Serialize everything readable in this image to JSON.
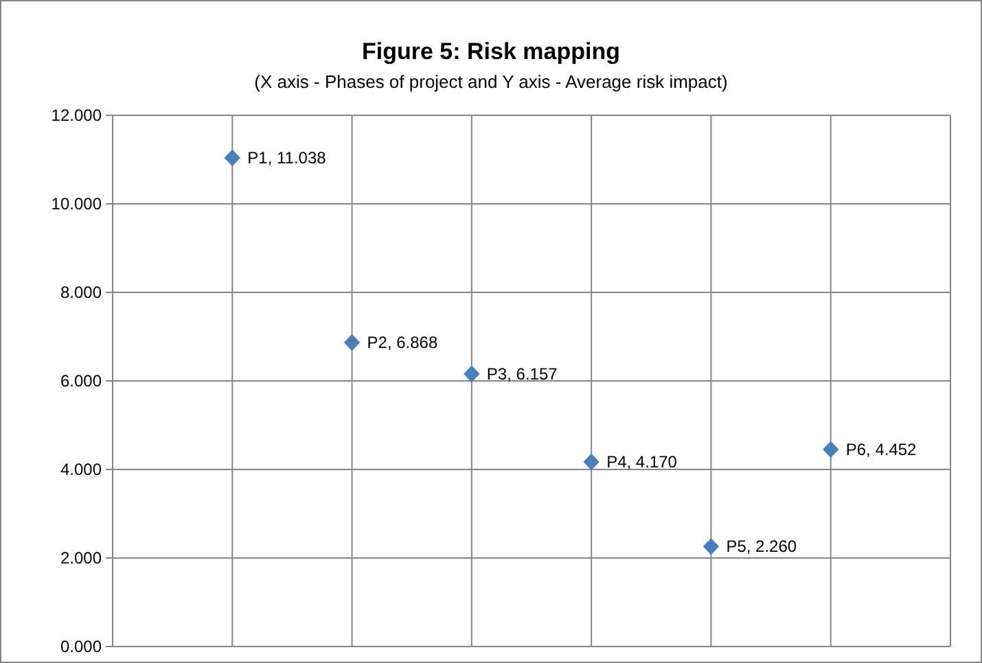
{
  "chart_data": {
    "type": "scatter",
    "title": "Figure 5: Risk mapping",
    "subtitle": "(X axis - Phases of project and Y axis - Average risk impact)",
    "categories": [
      null,
      null,
      null,
      null,
      null,
      null
    ],
    "series": [
      {
        "color": "#4a7ebb",
        "values": [
          11.038,
          6.868,
          6.157,
          4.17,
          2.26,
          4.452
        ],
        "value_labels": [
          "P1, 11.038",
          "P2, 6.868",
          "P3, 6.157",
          "P4, 4.170",
          "P5, 2.260",
          "P6, 4.452"
        ]
      }
    ],
    "ylim": [
      0,
      12
    ],
    "yticks": [
      {
        "value": 0,
        "label": "0.000"
      },
      {
        "value": 2,
        "label": "2.000"
      },
      {
        "value": 4,
        "label": "4.000"
      },
      {
        "value": 6,
        "label": "6.000"
      },
      {
        "value": 8,
        "label": "8.000"
      },
      {
        "value": 10,
        "label": "10.000"
      },
      {
        "value": 12,
        "label": "12.000"
      }
    ],
    "grid": true,
    "marker": "diamond"
  }
}
